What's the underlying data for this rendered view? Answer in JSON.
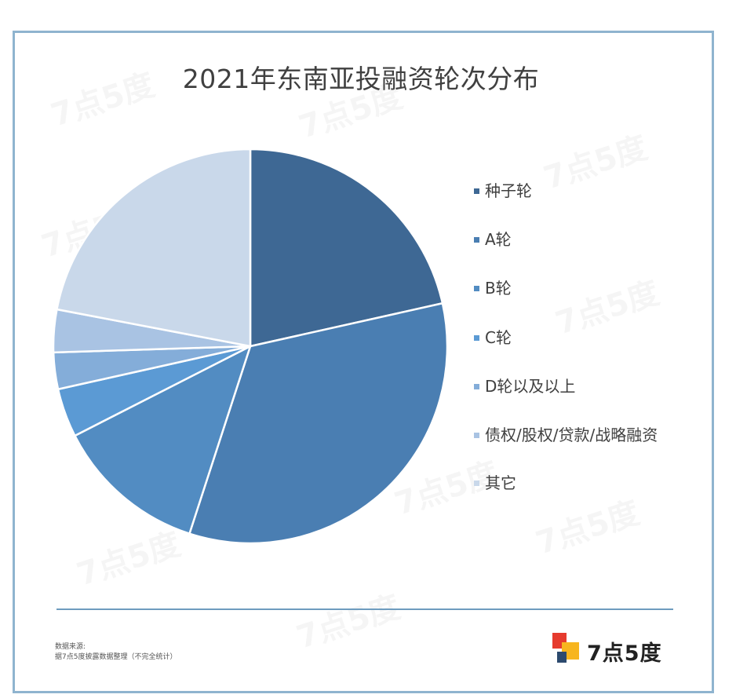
{
  "chart_data": {
    "type": "pie",
    "title": "2021年东南亚投融资轮次分布",
    "legend_position": "right",
    "slices": [
      {
        "label": "种子轮",
        "value": 21.5,
        "color": "#3e6894"
      },
      {
        "label": "A轮",
        "value": 33.5,
        "color": "#4a7eb2"
      },
      {
        "label": "B轮",
        "value": 12.5,
        "color": "#528cc2"
      },
      {
        "label": "C轮",
        "value": 4.0,
        "color": "#5b9ad4"
      },
      {
        "label": "D轮以及以上",
        "value": 3.0,
        "color": "#84add9"
      },
      {
        "label": "债权/股权/贷款/战略融资",
        "value": 3.5,
        "color": "#a9c3e3"
      },
      {
        "label": "其它",
        "value": 22.0,
        "color": "#c9d8ea"
      }
    ]
  },
  "watermark": "7点5度",
  "source": {
    "line1": "数据来源:",
    "line2": "据7点5度披露数据整理（不完全统计）"
  },
  "logo": {
    "text": "7点5度",
    "colors": [
      "#e63b2e",
      "#f7b51e",
      "#2c4a6e"
    ]
  }
}
